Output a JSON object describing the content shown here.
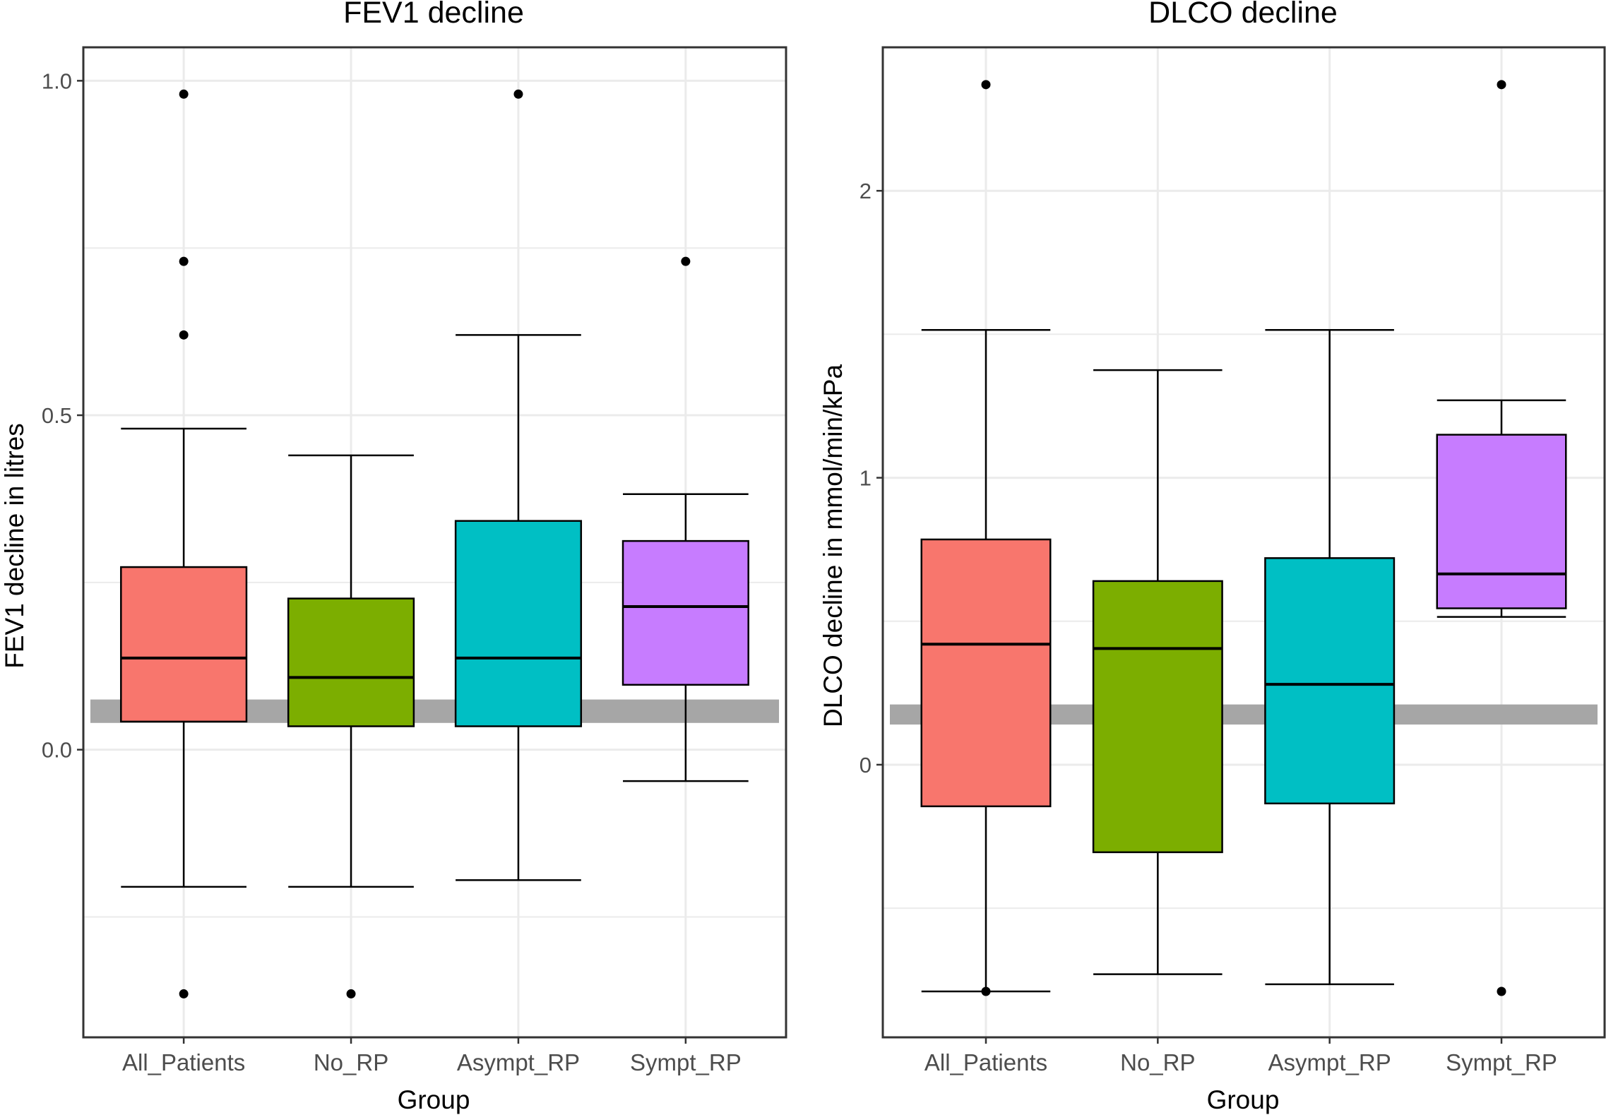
{
  "colors": {
    "All_Patients": "#f8766d",
    "No_RP": "#7cae00",
    "Asympt_RP": "#00bfc4",
    "Sympt_RP": "#c77cff",
    "band": "#a6a6a6",
    "grid": "#ebebeb",
    "border": "#333333"
  },
  "chart_data": [
    {
      "type": "boxplot",
      "title": "FEV1 decline",
      "xlabel": "Group",
      "ylabel": "FEV1 decline in litres",
      "categories": [
        "All_Patients",
        "No_RP",
        "Asympt_RP",
        "Sympt_RP"
      ],
      "yticks": [
        0.0,
        0.5,
        1.0
      ],
      "ytick_labels": [
        "0.0",
        "0.5",
        "1.0"
      ],
      "ylim": [
        -0.43,
        1.05
      ],
      "minor_grid": [
        -0.25,
        0.25,
        0.75
      ],
      "reference_band": [
        0.04,
        0.075
      ],
      "boxes": [
        {
          "category": "All_Patients",
          "whisker_low": -0.205,
          "q1": 0.042,
          "median": 0.137,
          "q3": 0.273,
          "whisker_high": 0.48,
          "outliers": [
            0.98,
            0.73,
            0.62,
            -0.365
          ]
        },
        {
          "category": "No_RP",
          "whisker_low": -0.205,
          "q1": 0.035,
          "median": 0.108,
          "q3": 0.226,
          "whisker_high": 0.44,
          "outliers": [
            -0.365
          ]
        },
        {
          "category": "Asympt_RP",
          "whisker_low": -0.195,
          "q1": 0.035,
          "median": 0.137,
          "q3": 0.342,
          "whisker_high": 0.62,
          "outliers": [
            0.98
          ]
        },
        {
          "category": "Sympt_RP",
          "whisker_low": -0.047,
          "q1": 0.097,
          "median": 0.214,
          "q3": 0.312,
          "whisker_high": 0.382,
          "outliers": [
            0.73
          ]
        }
      ]
    },
    {
      "type": "boxplot",
      "title": "DLCO decline",
      "xlabel": "Group",
      "ylabel": "DLCO decline in mmol/min/kPa",
      "categories": [
        "All_Patients",
        "No_RP",
        "Asympt_RP",
        "Sympt_RP"
      ],
      "yticks": [
        0,
        1,
        2
      ],
      "ytick_labels": [
        "0",
        "1",
        "2"
      ],
      "ylim": [
        -0.95,
        2.5
      ],
      "minor_grid": [
        -0.5,
        0.5,
        1.5
      ],
      "reference_band": [
        0.14,
        0.21
      ],
      "boxes": [
        {
          "category": "All_Patients",
          "whisker_low": -0.79,
          "q1": -0.145,
          "median": 0.42,
          "q3": 0.785,
          "whisker_high": 1.515,
          "outliers": [
            2.37,
            -0.79
          ]
        },
        {
          "category": "No_RP",
          "whisker_low": -0.73,
          "q1": -0.305,
          "median": 0.405,
          "q3": 0.64,
          "whisker_high": 1.375,
          "outliers": []
        },
        {
          "category": "Asympt_RP",
          "whisker_low": -0.765,
          "q1": -0.135,
          "median": 0.28,
          "q3": 0.72,
          "whisker_high": 1.515,
          "outliers": []
        },
        {
          "category": "Sympt_RP",
          "whisker_low": 0.515,
          "q1": 0.545,
          "median": 0.665,
          "q3": 1.15,
          "whisker_high": 1.27,
          "outliers": [
            2.37,
            -0.79
          ]
        }
      ]
    }
  ]
}
